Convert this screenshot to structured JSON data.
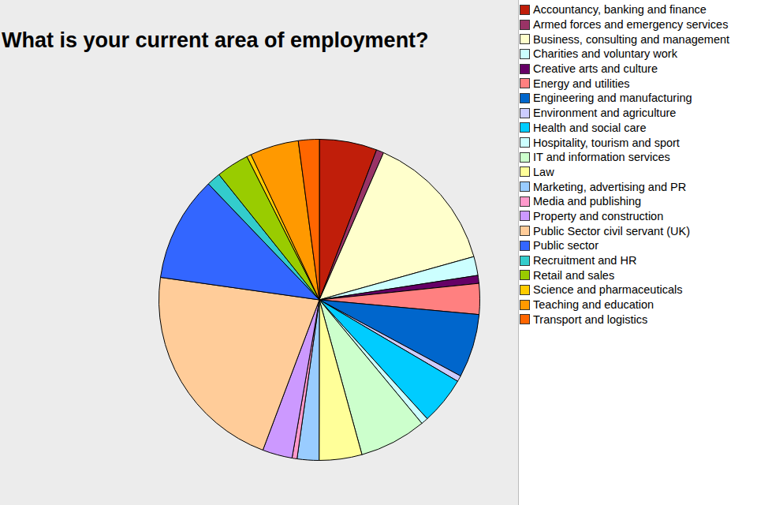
{
  "chart_data": {
    "type": "pie",
    "title": "What is your current area of employment?",
    "categories": [
      "Accountancy, banking and finance",
      "Armed forces and emergency services",
      "Business, consulting and management",
      "Charities and voluntary work",
      "Creative arts and culture",
      "Energy and utilities",
      "Engineering and manufacturing",
      "Environment and agriculture",
      "Health and social care",
      "Hospitality, tourism and sport",
      "IT and information services",
      "Law",
      "Marketing, advertising and PR",
      "Media and publishing",
      "Property and construction",
      "Public Sector civil servant (UK)",
      "Public sector",
      "Recruitment and HR",
      "Retail and sales",
      "Science and pharmaceuticals",
      "Teaching and education",
      "Transport and logistics"
    ],
    "values": [
      5.8,
      0.75,
      14.1,
      1.9,
      0.8,
      3.1,
      6.4,
      0.6,
      4.8,
      0.7,
      6.75,
      4.3,
      2.2,
      0.5,
      3.0,
      21.5,
      10.6,
      1.4,
      3.3,
      0.45,
      4.9,
      2.1
    ],
    "colors": [
      "#c01e0a",
      "#993366",
      "#ffffcc",
      "#ccffff",
      "#660066",
      "#ff8080",
      "#0066cc",
      "#ccccff",
      "#00ccff",
      "#ccffff",
      "#ccffcc",
      "#ffff99",
      "#99ccff",
      "#ff99cc",
      "#cc99ff",
      "#ffcc99",
      "#3366ff",
      "#33cccc",
      "#99cc00",
      "#ffcc00",
      "#ff9900",
      "#ff6600"
    ],
    "legend": "top-right"
  }
}
